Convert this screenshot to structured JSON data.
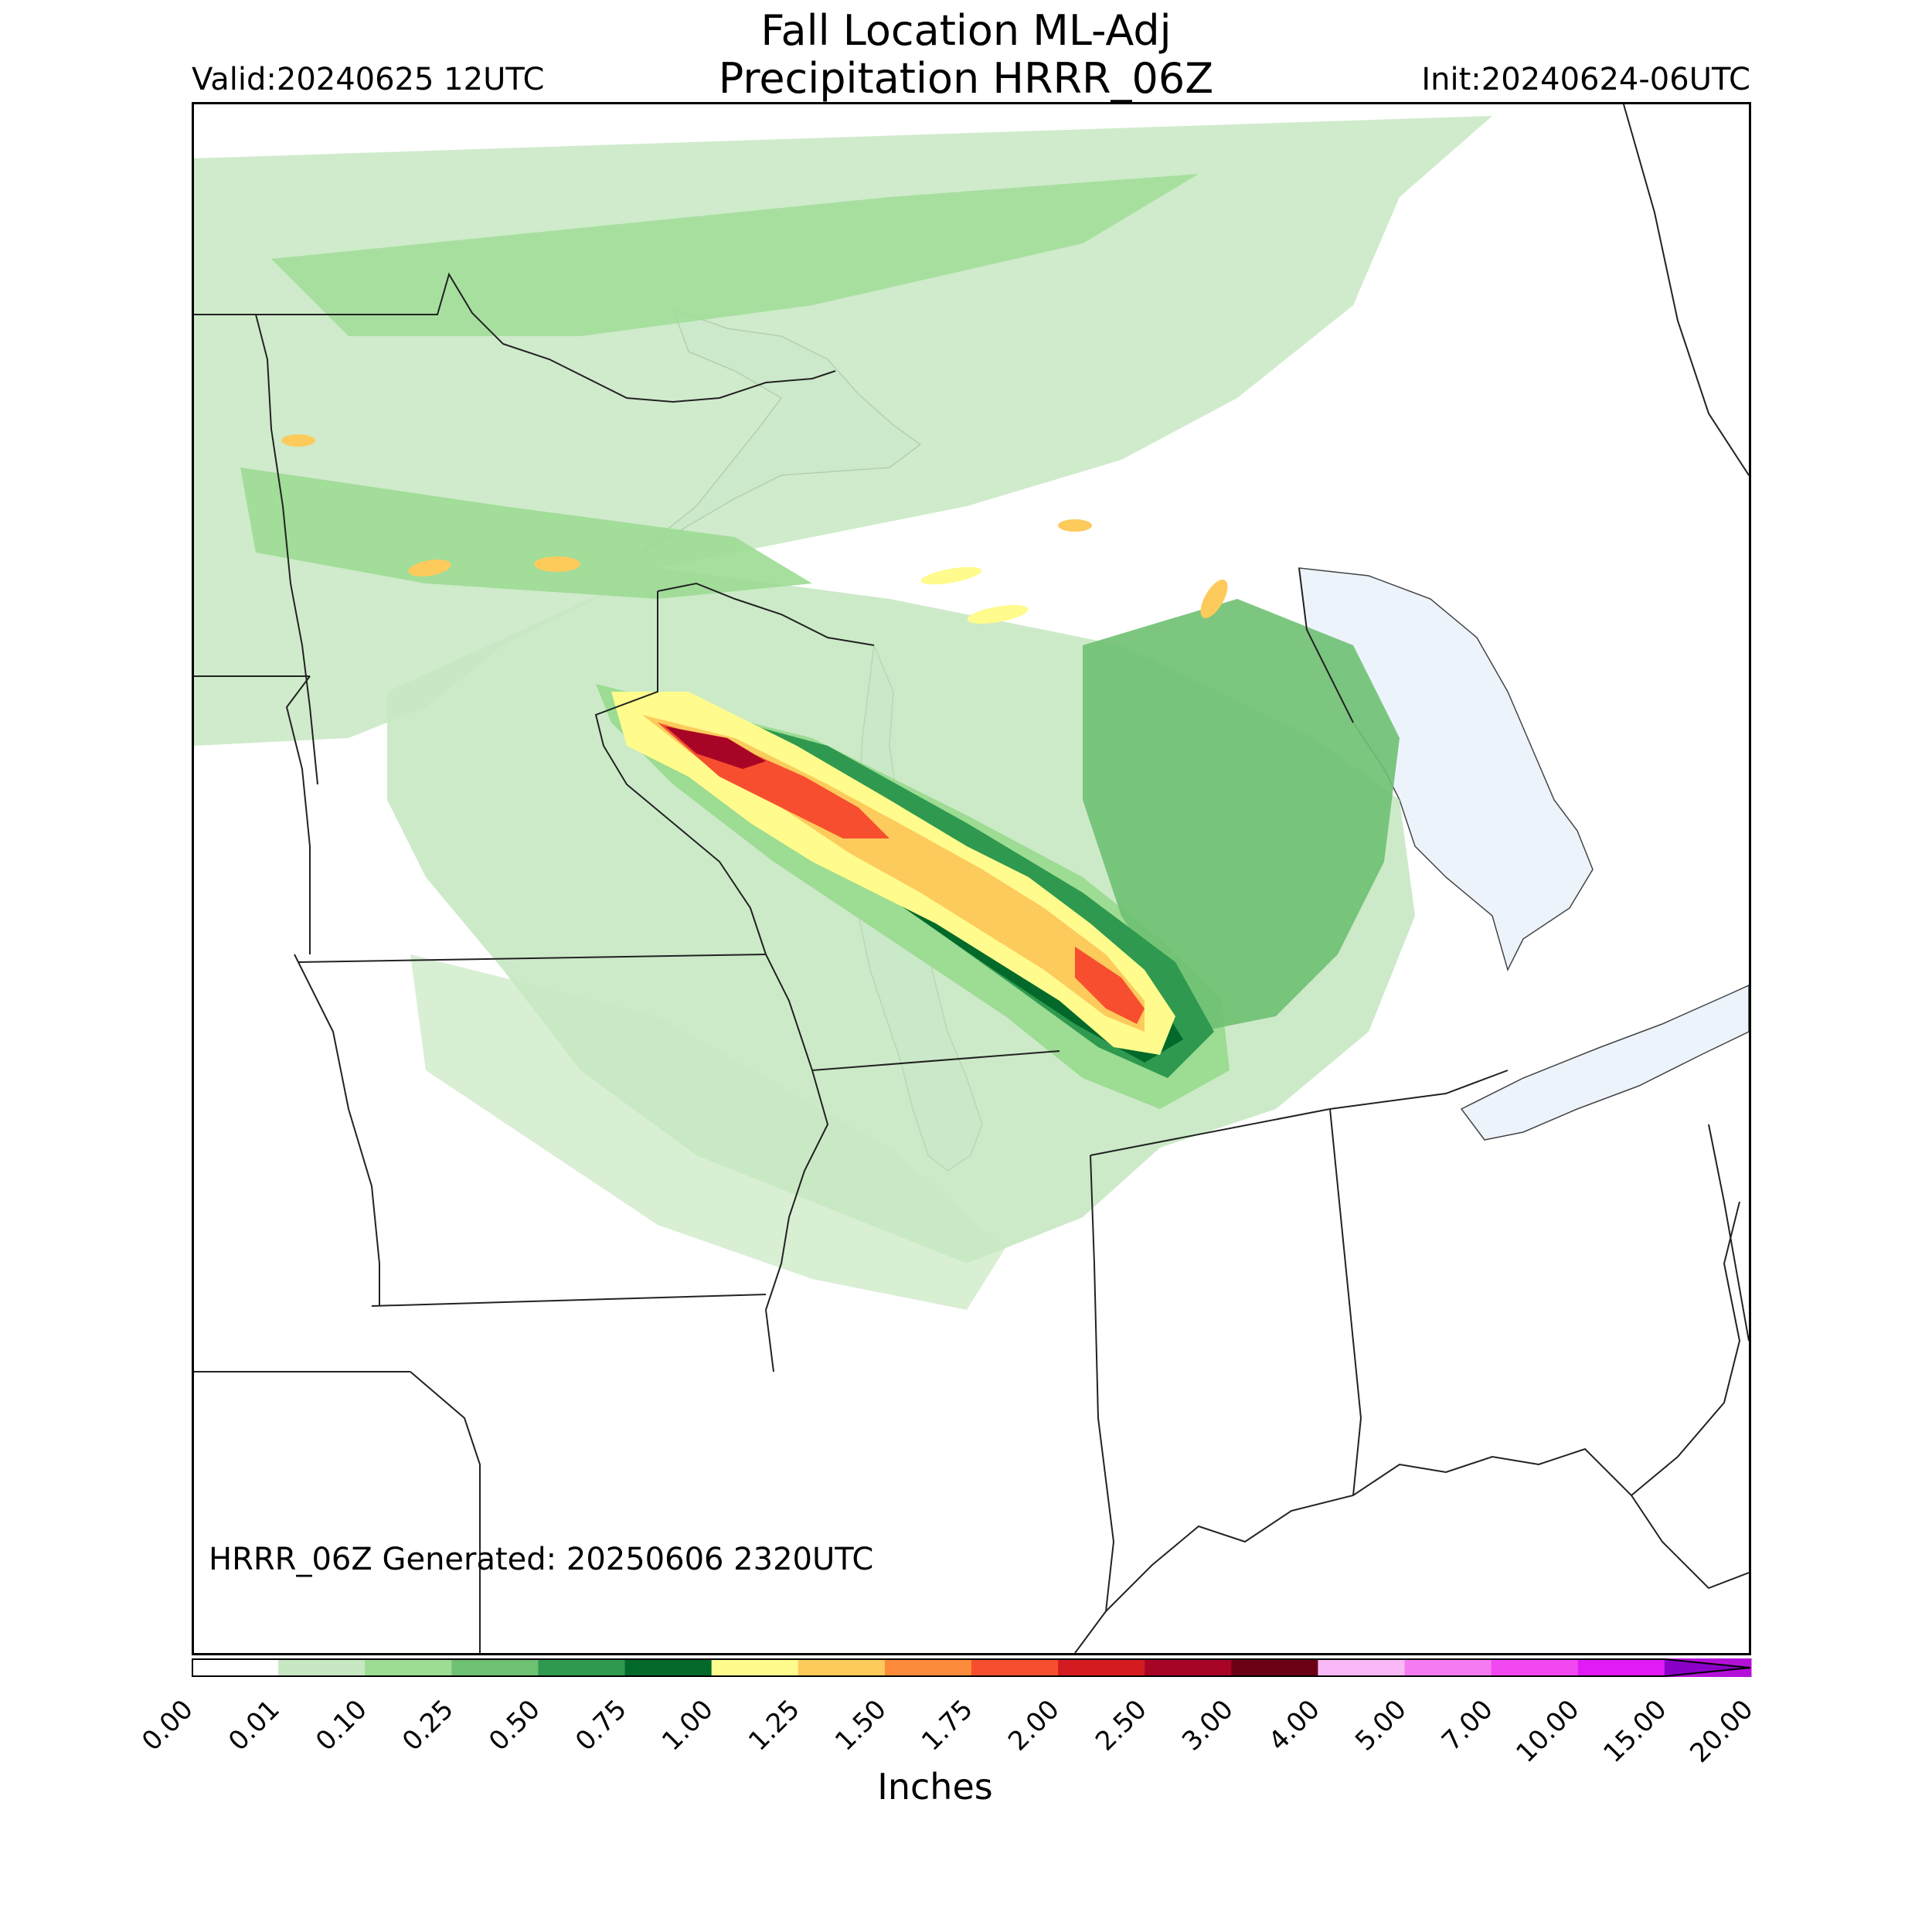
{
  "header": {
    "title_line1": "Fall Location ML-Adj",
    "title_line2": "Precipitation HRRR_06Z",
    "valid": "Valid:20240625 12UTC",
    "init": "Init:20240624-06UTC"
  },
  "footer": {
    "generated": "HRRR_06Z Generated: 20250606 2320UTC"
  },
  "colorbar": {
    "label": "Inches",
    "levels": [
      "0.00",
      "0.01",
      "0.10",
      "0.25",
      "0.50",
      "0.75",
      "1.00",
      "1.25",
      "1.50",
      "1.75",
      "2.00",
      "2.50",
      "3.00",
      "4.00",
      "5.00",
      "7.00",
      "10.00",
      "15.00",
      "20.00"
    ],
    "colors": [
      "#ffffff",
      "#c7e8c2",
      "#9cdc93",
      "#6ec072",
      "#2f9a4f",
      "#03692b",
      "#fffb8c",
      "#fdca5c",
      "#fc8c3c",
      "#f64e2e",
      "#d41c20",
      "#a80526",
      "#6b0015",
      "#f9b8f6",
      "#f57bf3",
      "#f248f2",
      "#e11bf6",
      "#b411d8",
      "#8a00c8"
    ]
  },
  "map": {
    "lake_color": "#ecf3fb",
    "border_color": "#222222"
  }
}
